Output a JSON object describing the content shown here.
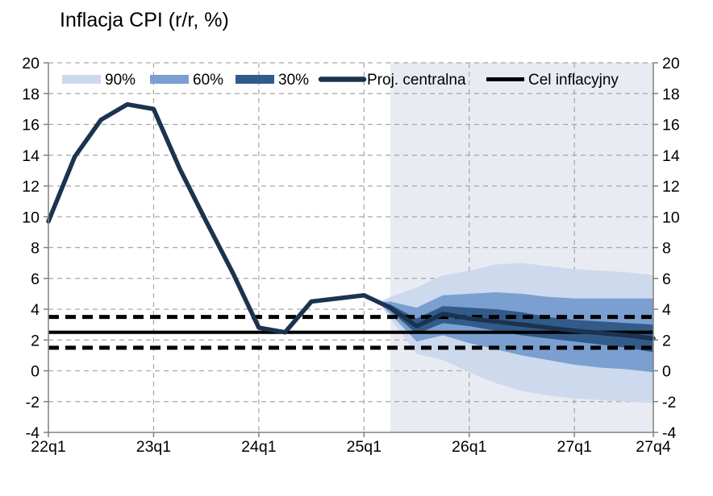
{
  "title": "Inflacja CPI (r/r, %)",
  "legend": {
    "items": [
      {
        "label": "90%",
        "swatch": "band",
        "color": "#cdd9ec"
      },
      {
        "label": "60%",
        "swatch": "band",
        "color": "#7a9fd0"
      },
      {
        "label": "30%",
        "swatch": "band",
        "color": "#325b89"
      },
      {
        "label": "Proj. centralna",
        "swatch": "line",
        "color": "#1b3350"
      },
      {
        "label": "Cel inflacyjny",
        "swatch": "line",
        "color": "#000000"
      }
    ]
  },
  "chart_data": {
    "type": "line",
    "title": "Inflacja CPI (r/r, %)",
    "x_quarters": [
      "22q1",
      "22q2",
      "22q3",
      "22q4",
      "23q1",
      "23q2",
      "23q3",
      "23q4",
      "24q1",
      "24q2",
      "24q3",
      "24q4",
      "25q1",
      "25q2",
      "25q3",
      "25q4",
      "26q1",
      "26q2",
      "26q3",
      "26q4",
      "27q1",
      "27q2",
      "27q3",
      "27q4"
    ],
    "x_tick_labels": [
      "22q1",
      "23q1",
      "24q1",
      "25q1",
      "26q1",
      "27q1",
      "27q4"
    ],
    "x_tick_indices": [
      0,
      4,
      8,
      12,
      16,
      20,
      23
    ],
    "y_ticks": [
      -4,
      -2,
      0,
      2,
      4,
      6,
      8,
      10,
      12,
      14,
      16,
      18,
      20
    ],
    "ylim": [
      -4,
      20
    ],
    "grid": true,
    "legend_position": "top-inside",
    "central_projection": {
      "name": "Proj. centralna",
      "values": [
        9.7,
        13.9,
        16.3,
        17.3,
        17.0,
        13.1,
        9.7,
        6.4,
        2.8,
        2.5,
        4.5,
        4.7,
        4.9,
        4.1,
        2.9,
        3.7,
        3.4,
        3.2,
        3.0,
        2.8,
        2.6,
        2.45,
        2.3,
        2.1
      ]
    },
    "fan_bands": {
      "start_index": 13,
      "start_quarter": "25q2",
      "bands": [
        {
          "name": "90%",
          "color": "#cdd9ec",
          "upper": [
            4.8,
            5.4,
            6.2,
            6.5,
            6.9,
            7.0,
            6.8,
            6.6,
            6.5,
            6.4,
            6.2
          ],
          "lower": [
            3.4,
            1.1,
            0.7,
            -0.1,
            -0.8,
            -1.3,
            -1.6,
            -1.8,
            -1.9,
            -2.0,
            -2.1
          ]
        },
        {
          "name": "60%",
          "color": "#7a9fd0",
          "upper": [
            4.5,
            4.1,
            4.9,
            5.0,
            5.1,
            5.0,
            4.8,
            4.7,
            4.7,
            4.7,
            4.7
          ],
          "lower": [
            3.7,
            1.9,
            2.3,
            1.8,
            1.4,
            1.0,
            0.7,
            0.4,
            0.2,
            0.1,
            -0.1
          ]
        },
        {
          "name": "30%",
          "color": "#325b89",
          "upper": [
            4.3,
            3.4,
            4.2,
            4.1,
            4.0,
            3.8,
            3.5,
            3.3,
            3.2,
            3.1,
            3.0
          ],
          "lower": [
            3.9,
            2.4,
            3.1,
            2.9,
            2.6,
            2.3,
            2.1,
            1.9,
            1.7,
            1.5,
            1.2
          ]
        }
      ]
    },
    "inflation_target": {
      "name": "Cel inflacyjny",
      "center": 2.5,
      "upper": 3.5,
      "lower": 1.5
    },
    "projection_shade": {
      "start_quarter": "25q2",
      "color": "#e9ebf2"
    }
  },
  "colors": {
    "central_line": "#1b3350",
    "target_line": "#000000",
    "gridline": "#a6a6a6",
    "axis": "#808080",
    "background": "#ffffff"
  }
}
